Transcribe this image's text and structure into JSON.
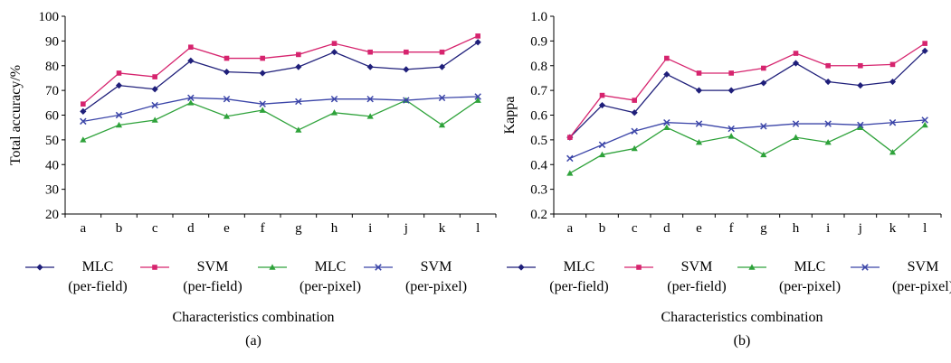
{
  "chart_data": [
    {
      "type": "line",
      "panel_label": "(a)",
      "xlabel": "Characteristics combination",
      "ylabel": "Total accuracy/%",
      "categories": [
        "a",
        "b",
        "c",
        "d",
        "e",
        "f",
        "g",
        "h",
        "i",
        "j",
        "k",
        "l"
      ],
      "ylim": [
        20,
        100
      ],
      "yticks": [
        20,
        30,
        40,
        50,
        60,
        70,
        80,
        90,
        100
      ],
      "ytick_labels": [
        "20",
        "30",
        "40",
        "50",
        "60",
        "70",
        "80",
        "90",
        "100"
      ],
      "grid": false,
      "legend_position": "bottom",
      "series": [
        {
          "name": "MLC\n(per-field)",
          "name_lines": [
            "MLC",
            "(per-field)"
          ],
          "color": "#1f1f7a",
          "marker": "diamond",
          "values": [
            61.5,
            72,
            70.5,
            82,
            77.5,
            77,
            79.5,
            85.5,
            79.5,
            78.5,
            79.5,
            89.5
          ]
        },
        {
          "name": "SVM\n(per-field)",
          "name_lines": [
            "SVM",
            "(per-field)"
          ],
          "color": "#d6246e",
          "marker": "square",
          "values": [
            64.5,
            77,
            75.5,
            87.5,
            83,
            83,
            84.5,
            89,
            85.5,
            85.5,
            85.5,
            92
          ]
        },
        {
          "name": "MLC\n(per-pixel)",
          "name_lines": [
            "MLC",
            "(per-pixel)"
          ],
          "color": "#2ea23a",
          "marker": "triangle",
          "values": [
            50,
            56,
            58,
            65,
            59.5,
            62,
            54,
            61,
            59.5,
            66,
            56,
            66
          ]
        },
        {
          "name": "SVM\n(per-pixel)",
          "name_lines": [
            "SVM",
            "(per-pixel)"
          ],
          "color": "#3b45a8",
          "marker": "x",
          "values": [
            57.5,
            60,
            64,
            67,
            66.5,
            64.5,
            65.5,
            66.5,
            66.5,
            66,
            67,
            67.5
          ]
        }
      ]
    },
    {
      "type": "line",
      "panel_label": "(b)",
      "xlabel": "Characteristics combination",
      "ylabel": "Kappa",
      "categories": [
        "a",
        "b",
        "c",
        "d",
        "e",
        "f",
        "g",
        "h",
        "i",
        "j",
        "k",
        "l"
      ],
      "ylim": [
        0.2,
        1.0
      ],
      "yticks": [
        0.2,
        0.3,
        0.4,
        0.5,
        0.6,
        0.7,
        0.8,
        0.9,
        1.0
      ],
      "ytick_labels": [
        "0.2",
        "0.3",
        "0.4",
        "0.5",
        "0.6",
        "0.7",
        "0.8",
        "0.9",
        "1.0"
      ],
      "grid": false,
      "legend_position": "bottom",
      "series": [
        {
          "name": "MLC\n(per-field)",
          "name_lines": [
            "MLC",
            "(per-field)"
          ],
          "color": "#1f1f7a",
          "marker": "diamond",
          "values": [
            0.51,
            0.64,
            0.61,
            0.765,
            0.7,
            0.7,
            0.73,
            0.81,
            0.735,
            0.72,
            0.735,
            0.86
          ]
        },
        {
          "name": "SVM\n(per-field)",
          "name_lines": [
            "SVM",
            "(per-field)"
          ],
          "color": "#d6246e",
          "marker": "square",
          "values": [
            0.51,
            0.68,
            0.66,
            0.83,
            0.77,
            0.77,
            0.79,
            0.85,
            0.8,
            0.8,
            0.805,
            0.89
          ]
        },
        {
          "name": "MLC\n(per-pixel)",
          "name_lines": [
            "MLC",
            "(per-pixel)"
          ],
          "color": "#2ea23a",
          "marker": "triangle",
          "values": [
            0.365,
            0.44,
            0.465,
            0.55,
            0.49,
            0.515,
            0.44,
            0.51,
            0.49,
            0.55,
            0.45,
            0.56
          ]
        },
        {
          "name": "SVM\n(per-pixel)",
          "name_lines": [
            "SVM",
            "(per-pixel)"
          ],
          "color": "#3b45a8",
          "marker": "x",
          "values": [
            0.425,
            0.48,
            0.535,
            0.57,
            0.565,
            0.545,
            0.555,
            0.565,
            0.565,
            0.56,
            0.57,
            0.58
          ]
        }
      ]
    }
  ]
}
